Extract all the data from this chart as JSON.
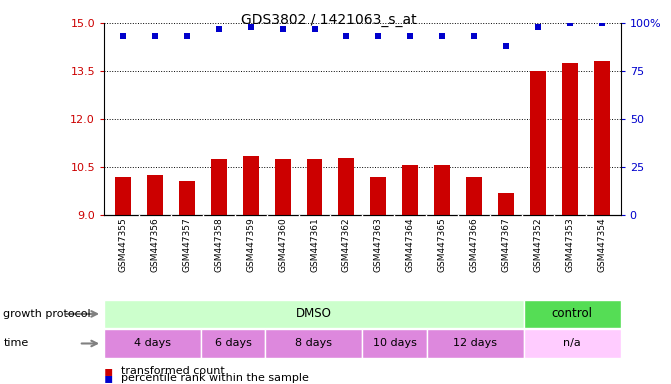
{
  "title": "GDS3802 / 1421063_s_at",
  "samples": [
    "GSM447355",
    "GSM447356",
    "GSM447357",
    "GSM447358",
    "GSM447359",
    "GSM447360",
    "GSM447361",
    "GSM447362",
    "GSM447363",
    "GSM447364",
    "GSM447365",
    "GSM447366",
    "GSM447367",
    "GSM447352",
    "GSM447353",
    "GSM447354"
  ],
  "bar_values": [
    10.2,
    10.25,
    10.05,
    10.75,
    10.85,
    10.75,
    10.75,
    10.78,
    10.18,
    10.55,
    10.55,
    10.2,
    9.7,
    13.5,
    13.75,
    13.8
  ],
  "dot_values": [
    93,
    93,
    93,
    97,
    98,
    97,
    97,
    93,
    93,
    93,
    93,
    93,
    88,
    98,
    100,
    100
  ],
  "ylim_left": [
    9,
    15
  ],
  "ylim_right": [
    0,
    100
  ],
  "yticks_left": [
    9,
    10.5,
    12,
    13.5,
    15
  ],
  "yticks_right": [
    0,
    25,
    50,
    75,
    100
  ],
  "bar_color": "#cc0000",
  "dot_color": "#0000cc",
  "bar_width": 0.5,
  "growth_protocol_groups": [
    {
      "label": "DMSO",
      "start": 0,
      "end": 12,
      "color": "#ccffcc"
    },
    {
      "label": "control",
      "start": 13,
      "end": 15,
      "color": "#55dd55"
    }
  ],
  "time_groups": [
    {
      "label": "4 days",
      "start": 0,
      "end": 2,
      "color": "#dd88dd"
    },
    {
      "label": "6 days",
      "start": 3,
      "end": 4,
      "color": "#dd88dd"
    },
    {
      "label": "8 days",
      "start": 5,
      "end": 7,
      "color": "#dd88dd"
    },
    {
      "label": "10 days",
      "start": 8,
      "end": 9,
      "color": "#dd88dd"
    },
    {
      "label": "12 days",
      "start": 10,
      "end": 12,
      "color": "#dd88dd"
    },
    {
      "label": "n/a",
      "start": 13,
      "end": 15,
      "color": "#ffccff"
    }
  ],
  "legend_items": [
    {
      "label": "transformed count",
      "color": "#cc0000",
      "marker": "s"
    },
    {
      "label": "percentile rank within the sample",
      "color": "#0000cc",
      "marker": "s"
    }
  ],
  "tick_label_color_left": "#cc0000",
  "tick_label_color_right": "#0000cc",
  "xlabel_row1": "growth protocol",
  "xlabel_row2": "time",
  "sample_bg_color": "#cccccc"
}
